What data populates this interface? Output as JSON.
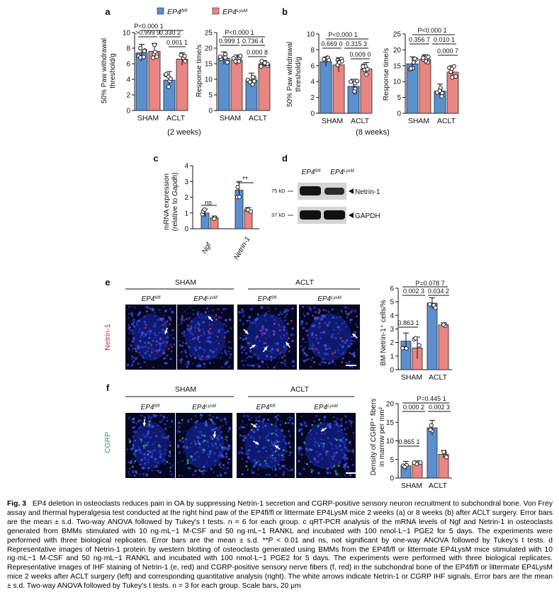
{
  "labels": {
    "panels": [
      "a",
      "b",
      "c",
      "d",
      "e",
      "f"
    ],
    "legend": [
      {
        "name": "EP4",
        "sup": "fl/fl",
        "color": "#5b8fcf"
      },
      {
        "name": "EP4",
        "sup": "LysM",
        "color": "#e98583"
      }
    ],
    "sham": "SHAM",
    "aclt": "ACLT",
    "two_weeks": "(2 weeks)",
    "eight_weeks": "(8 weeks)",
    "paw_ylabel_1": "50% Paw withdrawal",
    "paw_ylabel_2": "threshold/g",
    "resp_ylabel": "Response time/s",
    "mrna_ylabel_1": "mRNA expression",
    "mrna_ylabel_2": "(relative to",
    "mrna_ylabel_gene": "Gapdh",
    "mrna_ylabel_3": ")",
    "ngf": "Ngf",
    "netrin1_gene": "Netrin-1",
    "ns": "ns",
    "stars": "**",
    "wb_75": "75 kD",
    "wb_37": "37 kD",
    "wb_netrin": "Netrin-1",
    "wb_gapdh": "GAPDH",
    "img_netrin": "Netrin-1",
    "img_cgrp": "CGRP",
    "e_ylabel": "BM Netrin-1⁺ cells/%",
    "f_ylabel_1": "Density of CGRP⁺ fibers",
    "f_ylabel_2": "in marrow per mm²"
  },
  "chart_data": [
    {
      "id": "a1",
      "type": "bar",
      "categories": [
        "SHAM",
        "ACLT"
      ],
      "ylabel": "50% Paw withdrawal threshold/g",
      "ylim": [
        0,
        10
      ],
      "yticks": [
        0,
        2,
        4,
        6,
        8,
        10
      ],
      "series": [
        {
          "name": "EP4 fl/fl",
          "values": [
            7.4,
            3.9
          ],
          "sd": [
            1.1,
            1.1
          ]
        },
        {
          "name": "EP4 LysM",
          "values": [
            7.6,
            6.6
          ],
          "sd": [
            1.0,
            0.8
          ]
        }
      ],
      "annotations": [
        "P<0.000 1",
        ">0.999 9",
        "0.330 2",
        "0.001 1"
      ]
    },
    {
      "id": "a2",
      "type": "bar",
      "categories": [
        "SHAM",
        "ACLT"
      ],
      "ylabel": "Response time/s",
      "ylim": [
        0,
        25
      ],
      "yticks": [
        0,
        5,
        10,
        15,
        20,
        25
      ],
      "series": [
        {
          "name": "EP4 fl/fl",
          "values": [
            16.8,
            9.8
          ],
          "sd": [
            2.0,
            2.2
          ]
        },
        {
          "name": "EP4 LysM",
          "values": [
            16.2,
            15.0
          ],
          "sd": [
            1.6,
            1.0
          ]
        }
      ],
      "annotations": [
        "P<0.000 1",
        "0.999 1",
        "0.736 4",
        "0.000 8"
      ]
    },
    {
      "id": "b1",
      "type": "bar",
      "categories": [
        "SHAM",
        "ACLT"
      ],
      "ylabel": "50% Paw withdrawal threshold/g",
      "ylim": [
        0,
        10
      ],
      "yticks": [
        0,
        2,
        4,
        6,
        8,
        10
      ],
      "series": [
        {
          "name": "EP4 fl/fl",
          "values": [
            6.5,
            3.4
          ],
          "sd": [
            0.6,
            0.9
          ]
        },
        {
          "name": "EP4 LysM",
          "values": [
            6.1,
            5.6
          ],
          "sd": [
            0.9,
            0.8
          ]
        }
      ],
      "annotations": [
        "P<0.000 1",
        "0.669 0",
        "0.315 3",
        "0.009 0"
      ]
    },
    {
      "id": "b2",
      "type": "bar",
      "categories": [
        "SHAM",
        "ACLT"
      ],
      "ylabel": "Response time/s",
      "ylim": [
        0,
        25
      ],
      "yticks": [
        0,
        5,
        10,
        15,
        20,
        25
      ],
      "series": [
        {
          "name": "EP4 fl/fl",
          "values": [
            15.6,
            7.0
          ],
          "sd": [
            2.2,
            2.2
          ]
        },
        {
          "name": "EP4 LysM",
          "values": [
            17.0,
            13.0
          ],
          "sd": [
            1.5,
            2.0
          ]
        }
      ],
      "annotations": [
        "P<0.000 1",
        "0.356 7",
        "0.010 1",
        "0.000 7"
      ]
    },
    {
      "id": "c",
      "type": "bar",
      "categories": [
        "Ngf",
        "Netrin-1"
      ],
      "ylabel": "mRNA expression (relative to Gapdh)",
      "ylim": [
        0,
        4
      ],
      "yticks": [
        0,
        1,
        2,
        3,
        4
      ],
      "series": [
        {
          "name": "EP4 fl/fl",
          "values": [
            1.0,
            2.45
          ],
          "sd": [
            0.25,
            0.55
          ]
        },
        {
          "name": "EP4 LysM",
          "values": [
            0.7,
            1.2
          ],
          "sd": [
            0.1,
            0.15
          ]
        }
      ],
      "annotations": [
        "ns",
        "**"
      ]
    },
    {
      "id": "e",
      "type": "bar",
      "categories": [
        "SHAM",
        "ACLT"
      ],
      "ylabel": "BM Netrin-1+ cells/%",
      "ylim": [
        0,
        6
      ],
      "yticks": [
        0,
        1,
        2,
        3,
        4,
        5,
        6
      ],
      "series": [
        {
          "name": "EP4 fl/fl",
          "values": [
            2.1,
            4.9
          ],
          "sd": [
            0.6,
            0.4
          ]
        },
        {
          "name": "EP4 LysM",
          "values": [
            1.6,
            3.3
          ],
          "sd": [
            0.8,
            0.15
          ]
        }
      ],
      "annotations": [
        "P=0.078 7",
        "0.002 3",
        "0.034 2",
        "0.863 1"
      ]
    },
    {
      "id": "f",
      "type": "bar",
      "categories": [
        "SHAM",
        "ACLT"
      ],
      "ylabel": "Density of CGRP+ fibers in marrow per mm²",
      "ylim": [
        0,
        20
      ],
      "yticks": [
        0,
        5,
        10,
        15,
        20
      ],
      "series": [
        {
          "name": "EP4 fl/fl",
          "values": [
            3.3,
            13.5
          ],
          "sd": [
            1.2,
            2.0
          ]
        },
        {
          "name": "EP4 LysM",
          "values": [
            4.0,
            6.4
          ],
          "sd": [
            0.6,
            1.0
          ]
        }
      ],
      "annotations": [
        "P=0.445 1",
        "0.000 2",
        "0.002 3",
        "0.865 1"
      ]
    }
  ],
  "micrographs": {
    "e": [
      {
        "group": "SHAM",
        "genotype": "fl/fl"
      },
      {
        "group": "SHAM",
        "genotype": "LysM"
      },
      {
        "group": "ACLT",
        "genotype": "fl/fl"
      },
      {
        "group": "ACLT",
        "genotype": "LysM"
      }
    ],
    "f": [
      {
        "group": "SHAM",
        "genotype": "fl/fl"
      },
      {
        "group": "SHAM",
        "genotype": "LysM"
      },
      {
        "group": "ACLT",
        "genotype": "fl/fl"
      },
      {
        "group": "ACLT",
        "genotype": "LysM"
      }
    ]
  },
  "caption": {
    "fig_label": "Fig. 3",
    "title": "EP4 deletion in osteoclasts reduces pain in OA by suppressing Netrin-1 secretion and CGRP-positive sensory neuron recruitment to subchondral bone.",
    "a_b_text": "Von Frey assay and thermal hyperalgesia test conducted at the right hind paw of the EP4fl/fl or littermate EP4LysM mice 2 weeks (a) or 8 weeks (b) after ACLT surgery. Error bars are the mean ± s.d. Two-way ANOVA followed by Tukey's t tests. n = 6 for each group.",
    "c_text": "c qRT-PCR analysis of the mRNA levels of Ngf and Netrin-1 in osteoclasts generated from BMMs stimulated with 10 ng·mL−1 M-CSF and 50 ng·mL−1 RANKL and incubated with 100 nmol·L−1 PGE2 for 5 days. The experiments were performed with three biological replicates. Error bars are the mean ± s.d. **P < 0.01 and ns, not significant by one-way ANOVA followed by Tukey's t tests.",
    "d_text": "d Representative images of Netrin-1 protein by western blotting of osteoclasts generated using BMMs from the EP4fl/fl or littermate EP4LysM mice stimulated with 10 ng·mL−1 M-CSF and 50 ng·mL−1 RANKL and incubated with 100 nmol·L−1 PGE2 for 5 days. The experiments were performed with three biological replicates.",
    "e_f_text": "Representative images of IHF staining of Netrin-1 (e, red) and CGRP-positive sensory nerve fibers (f, red) in the subchondral bone of the EP4fl/fl or littermate EP4LysM mice 2 weeks after ACLT surgery (left) and corresponding quantitative analysis (right). The white arrows indicate Netrin-1 or CGRP IHF signals. Error bars are the mean ± s.d. Two-way ANOVA followed by Tukey's t tests. n = 3 for each group. Scale bars, 20 μm"
  }
}
